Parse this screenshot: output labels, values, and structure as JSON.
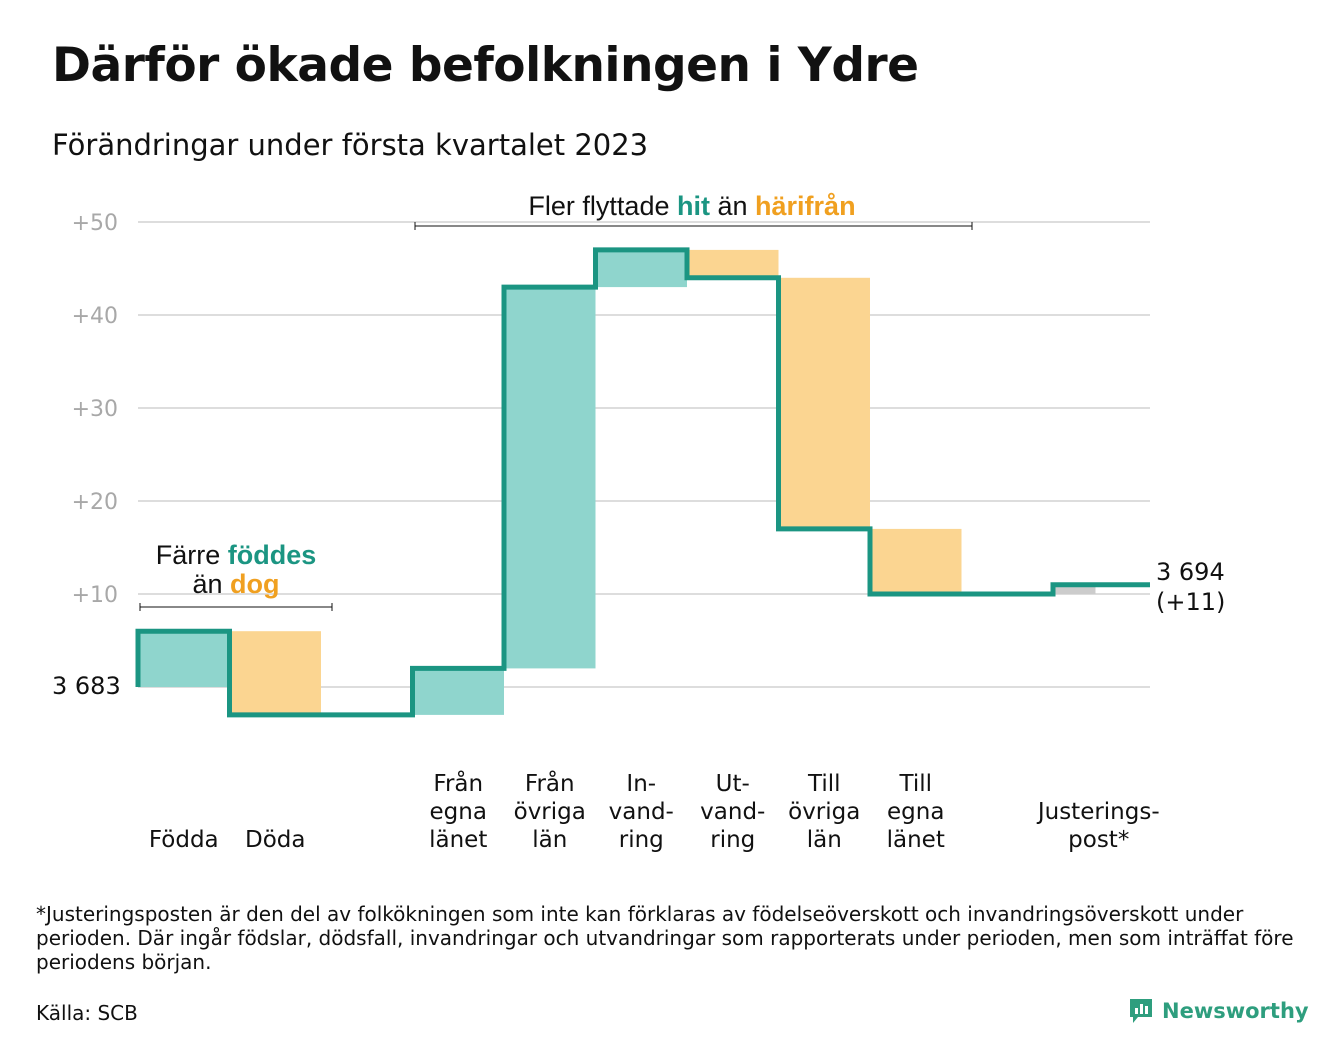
{
  "title": "Därför ökade befolkningen i Ydre",
  "subtitle": "Förändringar under första kvartalet 2023",
  "colors": {
    "inflow_fill": "#8fd5cd",
    "outflow_fill": "#fbd591",
    "adjust_fill": "#cccccc",
    "step_line": "#1b9582",
    "teal_text": "#1b9582",
    "orange_text": "#f0a020",
    "grid": "#dddddd",
    "tick_text": "#a8a8a8"
  },
  "annotations": {
    "births": {
      "line1_prefix": "Färre ",
      "line1_highlight": "föddes",
      "line2_prefix": "än ",
      "line2_highlight": "dog"
    },
    "migration": {
      "prefix": "Fler flyttade ",
      "highlight1": "hit",
      "middle": " än ",
      "highlight2": "härifrån"
    }
  },
  "start_label": "3 683",
  "end_label_line1": "3 694",
  "end_label_line2": "(+11)",
  "chart_data": {
    "type": "waterfall",
    "baseline_population": 3683,
    "final_population": 3694,
    "net_change": 11,
    "y_ticks": [
      "+10",
      "+20",
      "+30",
      "+40",
      "+50"
    ],
    "y_tick_values": [
      10,
      20,
      30,
      40,
      50
    ],
    "ylim": [
      -3,
      50
    ],
    "steps": [
      {
        "label_lines": [
          "Födda"
        ],
        "value": 6,
        "kind": "in"
      },
      {
        "label_lines": [
          "Döda"
        ],
        "value": -9,
        "kind": "out"
      },
      {
        "label_lines": [
          ""
        ],
        "value": 0,
        "kind": "gap"
      },
      {
        "label_lines": [
          "Från",
          "egna",
          "länet"
        ],
        "value": 5,
        "kind": "in"
      },
      {
        "label_lines": [
          "Från",
          "övriga",
          "län"
        ],
        "value": 41,
        "kind": "in"
      },
      {
        "label_lines": [
          "In-",
          "vand-",
          "ring"
        ],
        "value": 4,
        "kind": "in"
      },
      {
        "label_lines": [
          "Ut-",
          "vand-",
          "ring"
        ],
        "value": -3,
        "kind": "out"
      },
      {
        "label_lines": [
          "Till",
          "övriga",
          "län"
        ],
        "value": -27,
        "kind": "out"
      },
      {
        "label_lines": [
          "Till",
          "egna",
          "länet"
        ],
        "value": -7,
        "kind": "out"
      },
      {
        "label_lines": [
          ""
        ],
        "value": 0,
        "kind": "gap"
      },
      {
        "label_lines": [
          "Justerings-",
          "post*"
        ],
        "value": 1,
        "kind": "adjust"
      }
    ]
  },
  "footnote": "*Justeringsposten är den del av folkökningen som inte kan förklaras av födelseöverskott och invandringsöverskott under perioden. Där ingår födslar, dödsfall, invandringar och utvandringar som rapporterats under perioden, men som inträffat före periodens början.",
  "source": "Källa: SCB",
  "brand": {
    "name": "Newsworthy",
    "icon": "newsworthy-logo-icon"
  }
}
